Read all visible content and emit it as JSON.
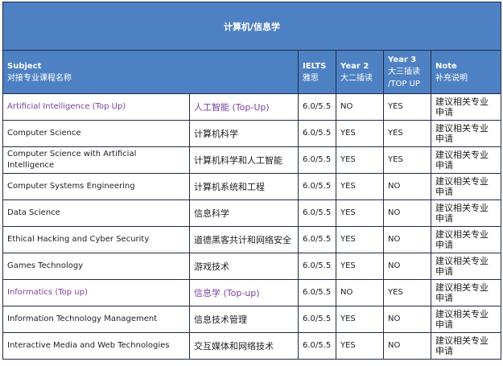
{
  "title": "计算机/信息学",
  "headers": {
    "subject_en": "Subject",
    "subject_cn": "对接专业课程名称",
    "ielts_en": "IELTS",
    "ielts_cn": "雅思",
    "year2_en": "Year 2",
    "year2_cn": "大二插读",
    "year3_en": "Year 3",
    "year3_cn": "大三插读",
    "year3_topup": "/TOP UP",
    "note_en": "Note",
    "note_cn": "补充说明"
  },
  "colors": {
    "header_bg": "#4e81c3",
    "highlight_text": "#7b3f9b"
  },
  "rows": [
    {
      "en": "Artificial Intelligence (Top Up)",
      "cn": "人工智能 (Top-Up)",
      "ielts": "6.0/5.5",
      "year2": "NO",
      "year3": "YES",
      "note": "建议相关专业申请",
      "highlight": true
    },
    {
      "en": "Computer Science",
      "cn": "计算机科学",
      "ielts": "6.0/5.5",
      "year2": "YES",
      "year3": "YES",
      "note": "建议相关专业申请",
      "highlight": false
    },
    {
      "en": "Computer Science with Artificial Intelligence",
      "cn": "计算机科学和人工智能",
      "ielts": "6.0/5.5",
      "year2": "YES",
      "year3": "YES",
      "note": "建议相关专业申请",
      "highlight": false
    },
    {
      "en": "Computer Systems Engineering",
      "cn": "计算机系统和工程",
      "ielts": "6.0/5.5",
      "year2": "YES",
      "year3": "NO",
      "note": "建议相关专业申请",
      "highlight": false
    },
    {
      "en": "Data Science",
      "cn": "信息科学",
      "ielts": "6.0/5.5",
      "year2": "YES",
      "year3": "NO",
      "note": "建议相关专业申请",
      "highlight": false
    },
    {
      "en": "Ethical Hacking and Cyber Security",
      "cn": "道德黑客共计和网络安全",
      "ielts": "6.0/5.5",
      "year2": "YES",
      "year3": "NO",
      "note": "建议相关专业申请",
      "highlight": false
    },
    {
      "en": "Games Technology",
      "cn": "游戏技术",
      "ielts": "6.0/5.5",
      "year2": "YES",
      "year3": "NO",
      "note": "建议相关专业申请",
      "highlight": false
    },
    {
      "en": "Informatics (Top up)",
      "cn": "信息学 (Top-up)",
      "ielts": "6.0/5.5",
      "year2": "NO",
      "year3": "YES",
      "note": "建议相关专业申请",
      "highlight": true
    },
    {
      "en": "Information Technology Management",
      "cn": "信息技术管理",
      "ielts": "6.0/5.5",
      "year2": "YES",
      "year3": "NO",
      "note": "建议相关专业申请",
      "highlight": false
    },
    {
      "en": "Interactive Media and Web Technologies",
      "cn": "交互媒体和网络技术",
      "ielts": "6.0/5.5",
      "year2": "YES",
      "year3": "NO",
      "note": "建议相关专业申请",
      "highlight": false
    }
  ]
}
